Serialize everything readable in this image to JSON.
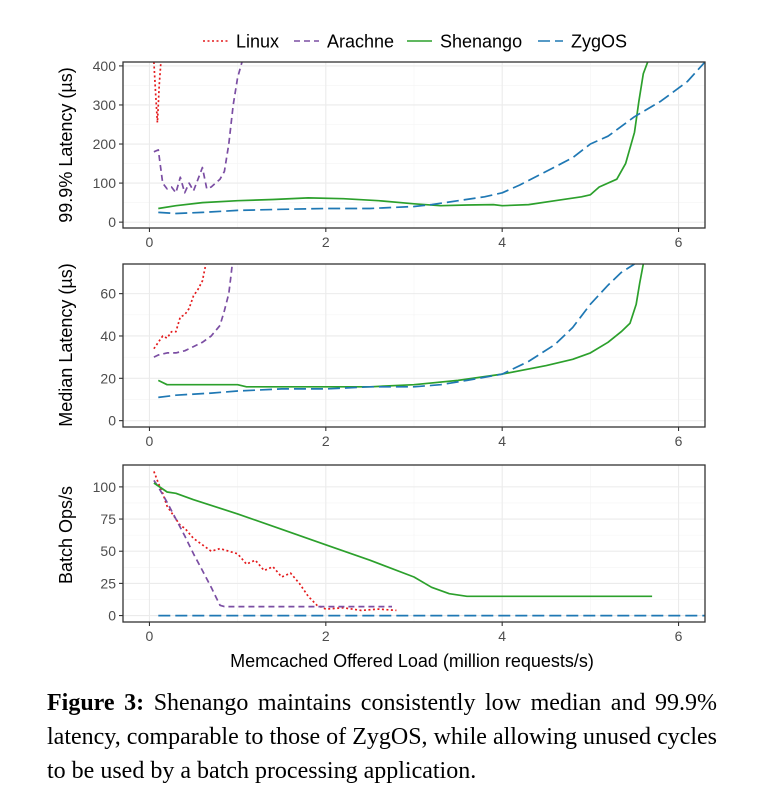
{
  "chart_data": [
    {
      "type": "line",
      "ylabel": "99.9% Latency (µs)",
      "xlabel": "",
      "xlim": [
        -0.3,
        6.3
      ],
      "ylim": [
        -15,
        410
      ],
      "xticks": [
        0,
        2,
        4,
        6
      ],
      "yticks": [
        0,
        100,
        200,
        300,
        400
      ],
      "grid": true,
      "series": [
        {
          "name": "Linux",
          "x": [
            0.05,
            0.07,
            0.09,
            0.1,
            0.11,
            0.13
          ],
          "y": [
            410,
            330,
            255,
            300,
            350,
            410
          ]
        },
        {
          "name": "Arachne",
          "x": [
            0.05,
            0.1,
            0.15,
            0.2,
            0.25,
            0.3,
            0.35,
            0.4,
            0.45,
            0.5,
            0.55,
            0.6,
            0.65,
            0.7,
            0.75,
            0.8,
            0.85,
            0.9,
            0.95,
            1.0,
            1.05
          ],
          "y": [
            180,
            185,
            100,
            85,
            90,
            75,
            115,
            75,
            100,
            80,
            110,
            140,
            85,
            90,
            100,
            110,
            130,
            200,
            300,
            370,
            410
          ]
        },
        {
          "name": "Shenango",
          "x": [
            0.1,
            0.3,
            0.6,
            1.0,
            1.4,
            1.8,
            2.2,
            2.6,
            3.0,
            3.3,
            3.6,
            3.9,
            4.0,
            4.3,
            4.6,
            4.9,
            5.0,
            5.1,
            5.3,
            5.4,
            5.5,
            5.55,
            5.6,
            5.65
          ],
          "y": [
            35,
            42,
            50,
            55,
            58,
            62,
            60,
            55,
            47,
            42,
            44,
            45,
            42,
            45,
            55,
            65,
            70,
            90,
            110,
            150,
            230,
            310,
            380,
            410
          ]
        },
        {
          "name": "ZygOS",
          "x": [
            0.1,
            0.3,
            0.6,
            1.0,
            1.5,
            2.0,
            2.5,
            3.0,
            3.2,
            3.5,
            3.8,
            4.0,
            4.2,
            4.5,
            4.8,
            5.0,
            5.2,
            5.5,
            5.8,
            6.1,
            6.3
          ],
          "y": [
            25,
            22,
            25,
            30,
            33,
            35,
            35,
            40,
            45,
            55,
            65,
            75,
            95,
            130,
            165,
            200,
            220,
            270,
            310,
            360,
            410
          ]
        }
      ]
    },
    {
      "type": "line",
      "ylabel": "Median Latency (µs)",
      "xlabel": "",
      "xlim": [
        -0.3,
        6.3
      ],
      "ylim": [
        -3,
        74
      ],
      "xticks": [
        0,
        2,
        4,
        6
      ],
      "yticks": [
        0,
        20,
        40,
        60
      ],
      "grid": true,
      "series": [
        {
          "name": "Linux",
          "x": [
            0.05,
            0.1,
            0.15,
            0.2,
            0.25,
            0.3,
            0.35,
            0.4,
            0.45,
            0.5,
            0.55,
            0.6,
            0.62,
            0.64
          ],
          "y": [
            34,
            37,
            40,
            39,
            42,
            42,
            49,
            50,
            53,
            59,
            62,
            66,
            70,
            74
          ]
        },
        {
          "name": "Arachne",
          "x": [
            0.05,
            0.1,
            0.2,
            0.3,
            0.4,
            0.5,
            0.6,
            0.7,
            0.8,
            0.85,
            0.9,
            0.92,
            0.94
          ],
          "y": [
            30,
            31,
            32,
            32,
            33,
            35,
            37,
            40,
            45,
            52,
            60,
            67,
            74
          ]
        },
        {
          "name": "Shenango",
          "x": [
            0.1,
            0.2,
            0.6,
            1.0,
            1.1,
            1.5,
            2.0,
            2.5,
            3.0,
            3.5,
            4.0,
            4.5,
            4.8,
            5.0,
            5.2,
            5.35,
            5.45,
            5.52,
            5.56,
            5.6
          ],
          "y": [
            19,
            17,
            17,
            17,
            16,
            16,
            16,
            16,
            17,
            19,
            22,
            26,
            29,
            32,
            37,
            42,
            46,
            55,
            65,
            74
          ]
        },
        {
          "name": "ZygOS",
          "x": [
            0.1,
            0.3,
            0.7,
            1.0,
            1.5,
            2.0,
            2.5,
            3.0,
            3.3,
            3.6,
            4.0,
            4.3,
            4.6,
            4.8,
            5.0,
            5.2,
            5.35,
            5.5
          ],
          "y": [
            11,
            12,
            13,
            14,
            15,
            15,
            16,
            16,
            17,
            19,
            22,
            28,
            36,
            44,
            55,
            64,
            70,
            74
          ]
        }
      ]
    },
    {
      "type": "line",
      "ylabel": "Batch Ops/s",
      "xlabel": "Memcached Offered Load (million requests/s)",
      "xlim": [
        -0.3,
        6.3
      ],
      "ylim": [
        -5,
        117
      ],
      "xticks": [
        0,
        2,
        4,
        6
      ],
      "yticks": [
        0,
        25,
        50,
        75,
        100
      ],
      "grid": true,
      "series": [
        {
          "name": "Linux",
          "x": [
            0.05,
            0.1,
            0.15,
            0.2,
            0.25,
            0.3,
            0.35,
            0.4,
            0.5,
            0.6,
            0.7,
            0.8,
            0.9,
            1.0,
            1.1,
            1.2,
            1.3,
            1.4,
            1.5,
            1.6,
            1.7,
            1.8,
            1.9,
            2.0,
            2.2,
            2.4,
            2.6,
            2.8
          ],
          "y": [
            112,
            103,
            95,
            85,
            80,
            75,
            70,
            68,
            60,
            55,
            50,
            52,
            50,
            48,
            40,
            43,
            35,
            38,
            30,
            33,
            25,
            15,
            8,
            5,
            6,
            4,
            5,
            4
          ]
        },
        {
          "name": "Arachne",
          "x": [
            0.05,
            0.1,
            0.2,
            0.3,
            0.4,
            0.5,
            0.6,
            0.7,
            0.8,
            0.85,
            1.0,
            1.5,
            2.0,
            2.5,
            2.75
          ],
          "y": [
            105,
            100,
            88,
            75,
            62,
            48,
            35,
            22,
            8,
            7,
            7,
            7,
            7,
            7,
            7
          ]
        },
        {
          "name": "Shenango",
          "x": [
            0.05,
            0.2,
            0.3,
            0.5,
            1.0,
            1.5,
            2.0,
            2.5,
            3.0,
            3.2,
            3.4,
            3.6,
            3.8,
            4.0,
            5.0,
            5.7
          ],
          "y": [
            103,
            96,
            95,
            90,
            79,
            67,
            55,
            43,
            30,
            22,
            17,
            15,
            15,
            15,
            15,
            15
          ]
        },
        {
          "name": "ZygOS",
          "x": [
            0.1,
            1.0,
            2.0,
            3.0,
            4.0,
            5.0,
            6.0,
            6.3
          ],
          "y": [
            0,
            0,
            0,
            0,
            0,
            0,
            0,
            0
          ]
        }
      ]
    }
  ],
  "legend": {
    "placement": "top",
    "items": [
      {
        "label": "Linux",
        "color": "#e41a1c",
        "dash": "dotted"
      },
      {
        "label": "Arachne",
        "color": "#7b4ea3",
        "dash": "dashed"
      },
      {
        "label": "Shenango",
        "color": "#2ca02c",
        "dash": "solid"
      },
      {
        "label": "ZygOS",
        "color": "#1f78b4",
        "dash": "longdash"
      }
    ]
  },
  "caption": {
    "label": "Figure 3:",
    "text": "Shenango maintains consistently low median and 99.9% latency, comparable to those of ZygOS, while allowing unused cycles to be used by a batch processing application."
  }
}
